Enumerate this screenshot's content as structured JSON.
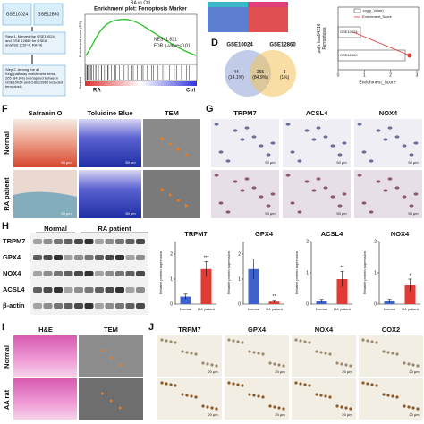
{
  "flowchart": {
    "datasets": [
      "GSE10024",
      "GSE12860"
    ],
    "step1": "Step 1. Merged the GSE10024 and GSE 12860 for GSEA analysis (Ctrl=4, RA=4)",
    "step2": "Step 2. Among the all Keggpathway enrichment items, 265 (84.9%) overlapped between GSE10024 and GSE12860 included ferroptosis"
  },
  "gsea": {
    "subtitle": "RA vs Ctrl",
    "title": "Enrichment plot: Ferroptosis Marker",
    "nes": "NES=1.821",
    "fdr": "FDR q-value<0.01",
    "y_label": "Enrichment score (ES)",
    "ranked_label": "Ranked",
    "left": "RA",
    "right": "Ctrl"
  },
  "venn": {
    "label": "D",
    "sets": [
      "GSE10024",
      "GSE12860"
    ],
    "left": "44\n(14.1%)",
    "middle": "265\n(84.9%)",
    "right": "3\n(1%)"
  },
  "dot_plot": {
    "legend": [
      "-log(p_Value)",
      "Enrichment_Score"
    ],
    "y_label": "path:hsa04216\nFerroptosis",
    "categories": [
      "GSE10024",
      "GSE12860"
    ],
    "x_label": "Enrichment_Score",
    "xticks": [
      0,
      1,
      2,
      3
    ]
  },
  "histology_f": {
    "label": "F",
    "columns": [
      "Safranin O",
      "Toluidine Blue",
      "TEM"
    ],
    "rows": [
      "Normal",
      "RA patient"
    ],
    "scale": "50 μm"
  },
  "ihc_g": {
    "label": "G",
    "columns": [
      "TRPM7",
      "ACSL4",
      "NOX4"
    ],
    "scale": "50 μm"
  },
  "western": {
    "label": "H",
    "groups": [
      "Normal",
      "RA patient"
    ],
    "proteins": [
      "TRPM7",
      "GPX4",
      "NOX4",
      "ACSL4",
      "β-actin"
    ]
  },
  "bar_charts": [
    {
      "title": "TRPM7",
      "y_label": "Relative protein expression",
      "categories": [
        "Normal",
        "RA patient"
      ],
      "values": [
        0.3,
        1.4
      ],
      "errors": [
        0.1,
        0.3
      ],
      "colors": [
        "#3d63c9",
        "#e23b33"
      ],
      "significance": "***",
      "ylim": [
        0,
        2.5
      ],
      "yticks": [
        0,
        1,
        2
      ]
    },
    {
      "title": "GPX4",
      "y_label": "Relative protein expression",
      "categories": [
        "Normal",
        "RA patient"
      ],
      "values": [
        1.4,
        0.1
      ],
      "errors": [
        0.4,
        0.05
      ],
      "colors": [
        "#3d63c9",
        "#e23b33"
      ],
      "significance": "**",
      "ylim": [
        0,
        2.5
      ],
      "yticks": [
        0,
        1,
        2
      ]
    },
    {
      "title": "ACSL4",
      "y_label": "Relative protein expression",
      "categories": [
        "Normal",
        "RA patient"
      ],
      "values": [
        0.1,
        0.8
      ],
      "errors": [
        0.05,
        0.25
      ],
      "colors": [
        "#3d63c9",
        "#e23b33"
      ],
      "significance": "**",
      "ylim": [
        0,
        2
      ],
      "yticks": [
        0,
        1,
        2
      ]
    },
    {
      "title": "NOX4",
      "y_label": "Relative protein expression",
      "categories": [
        "Normal",
        "RA patient"
      ],
      "values": [
        0.1,
        0.6
      ],
      "errors": [
        0.05,
        0.2
      ],
      "colors": [
        "#3d63c9",
        "#e23b33"
      ],
      "significance": "*",
      "ylim": [
        0,
        2
      ],
      "yticks": [
        0,
        1,
        2
      ]
    }
  ],
  "histology_i": {
    "label": "I",
    "columns": [
      "H&E",
      "TEM"
    ],
    "rows": [
      "Normal",
      "AA rat"
    ]
  },
  "ihc_j": {
    "label": "J",
    "columns": [
      "TRPM7",
      "GPX4",
      "NOX4",
      "COX2"
    ],
    "scale": "20 μm"
  }
}
